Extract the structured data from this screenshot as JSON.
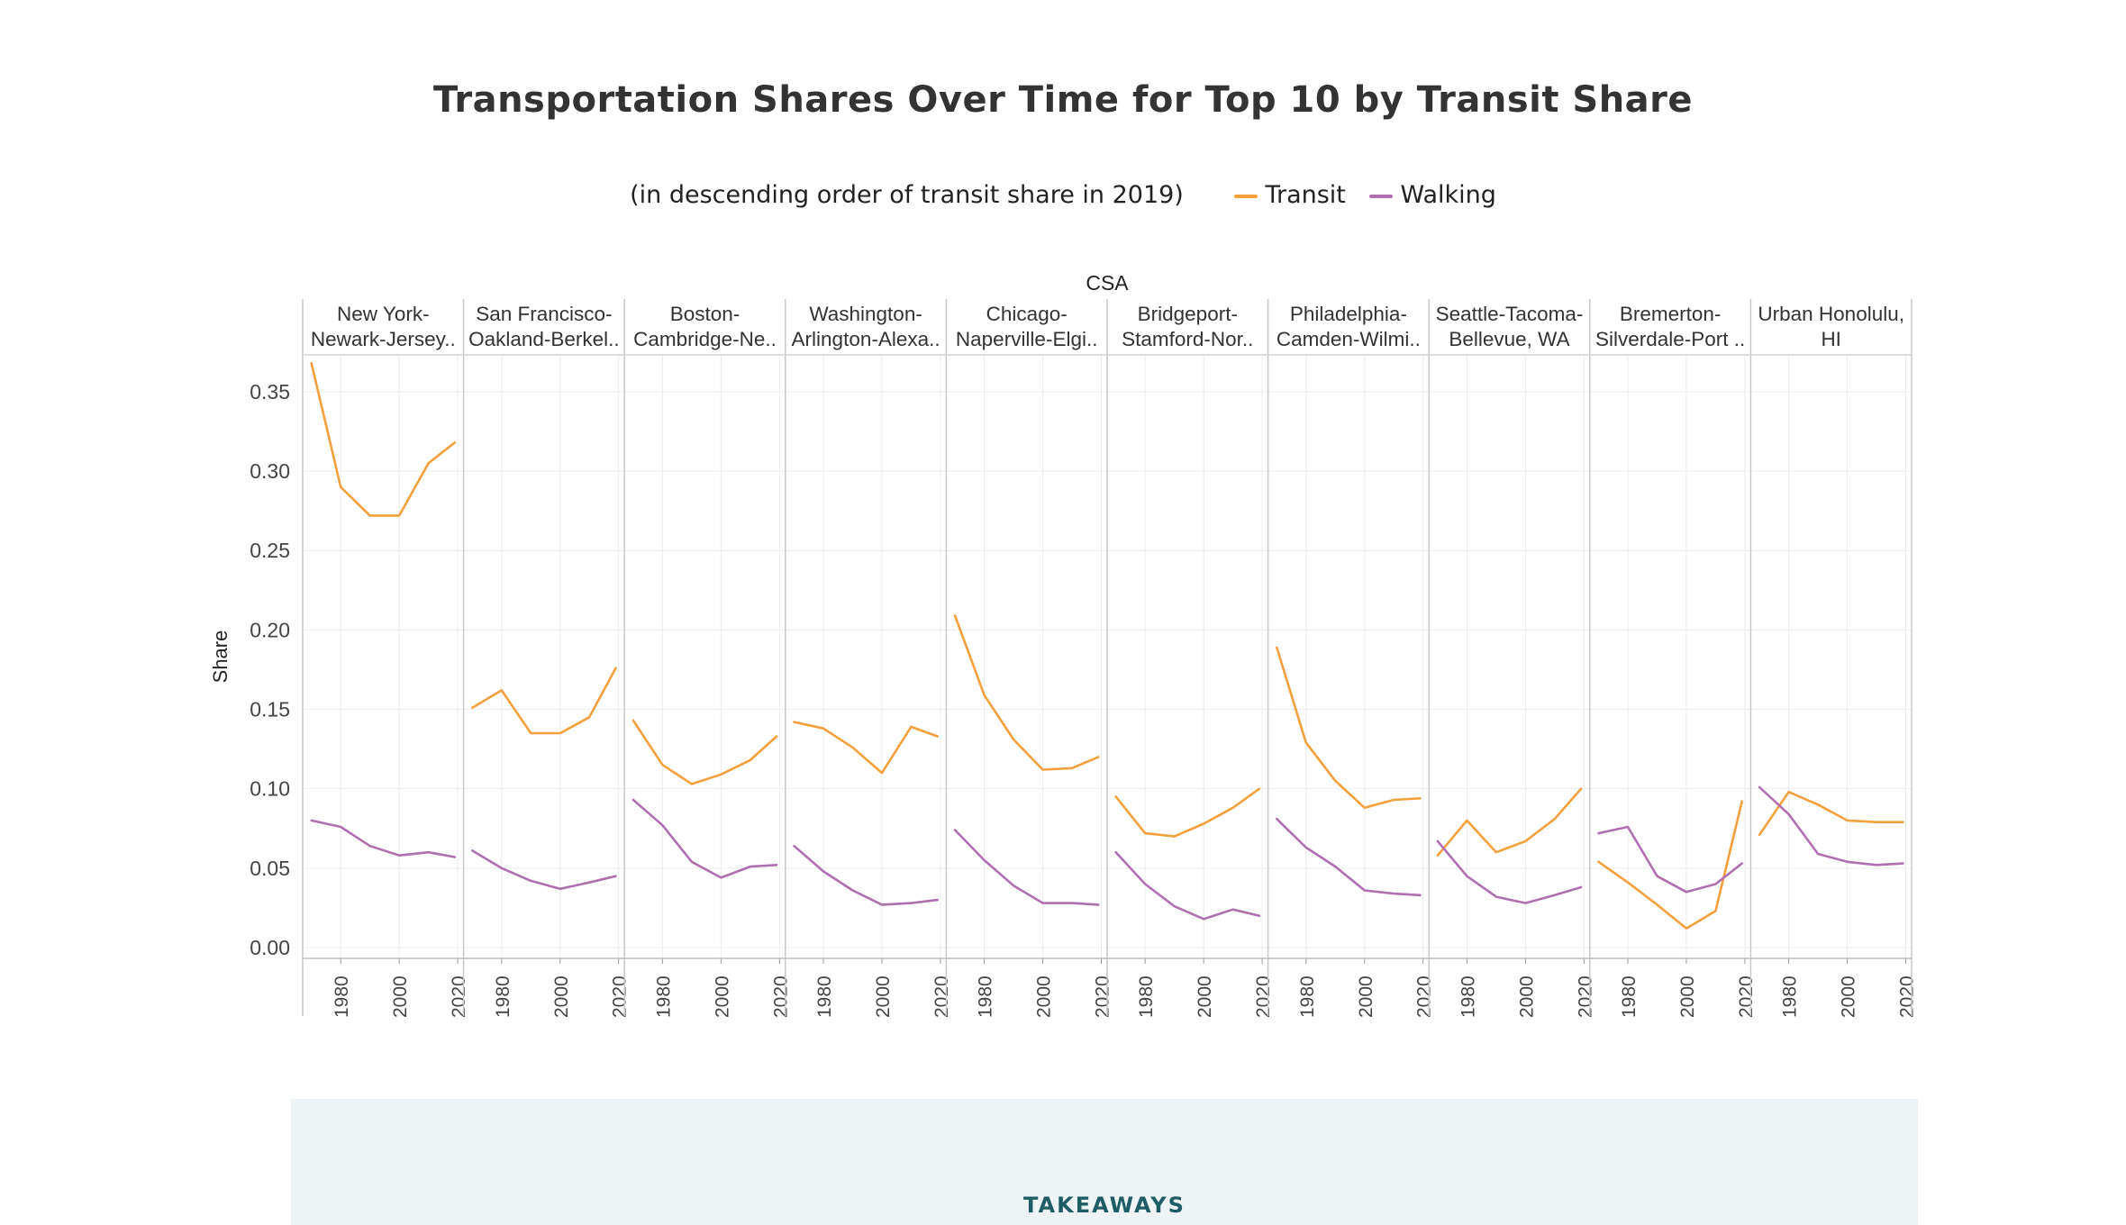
{
  "page": {
    "title": "Transportation Shares Over Time for Top 10 by Transit Share",
    "subtitle": "(in descending order of transit share in 2019)",
    "legend": [
      {
        "label": "Transit",
        "color": "#f5a03c"
      },
      {
        "label": "Walking",
        "color": "#b06fb0"
      }
    ],
    "takeaways": "TAKEAWAYS"
  },
  "chart_data": {
    "type": "line",
    "facet_label": "CSA",
    "ylabel": "Share",
    "ylim": [
      0,
      0.38
    ],
    "yticks": [
      "0.00",
      "0.05",
      "0.10",
      "0.15",
      "0.20",
      "0.25",
      "0.30",
      "0.35"
    ],
    "xlim": [
      1967,
      2022
    ],
    "xticks": [
      "1980",
      "2000",
      "2020"
    ],
    "grid": true,
    "colors": {
      "Transit": "#f5a03c",
      "Walking": "#b06fb0"
    },
    "x": [
      1970,
      1980,
      1990,
      2000,
      2010,
      2019
    ],
    "panels": [
      {
        "label": [
          "New York-",
          "Newark-Jersey.."
        ],
        "series": [
          {
            "name": "Transit",
            "values": [
              0.368,
              0.29,
              0.272,
              0.272,
              0.305,
              0.318
            ]
          },
          {
            "name": "Walking",
            "values": [
              0.08,
              0.076,
              0.064,
              0.058,
              0.06,
              0.057
            ]
          }
        ]
      },
      {
        "label": [
          "San Francisco-",
          "Oakland-Berkel.."
        ],
        "series": [
          {
            "name": "Transit",
            "values": [
              0.151,
              0.162,
              0.135,
              0.135,
              0.145,
              0.176
            ]
          },
          {
            "name": "Walking",
            "values": [
              0.061,
              0.05,
              0.042,
              0.037,
              0.041,
              0.045
            ]
          }
        ]
      },
      {
        "label": [
          "Boston-",
          "Cambridge-Ne.."
        ],
        "series": [
          {
            "name": "Transit",
            "values": [
              0.143,
              0.115,
              0.103,
              0.109,
              0.118,
              0.133
            ]
          },
          {
            "name": "Walking",
            "values": [
              0.093,
              0.077,
              0.054,
              0.044,
              0.051,
              0.052
            ]
          }
        ]
      },
      {
        "label": [
          "Washington-",
          "Arlington-Alexa.."
        ],
        "series": [
          {
            "name": "Transit",
            "values": [
              0.142,
              0.138,
              0.126,
              0.11,
              0.139,
              0.133
            ]
          },
          {
            "name": "Walking",
            "values": [
              0.064,
              0.048,
              0.036,
              0.027,
              0.028,
              0.03
            ]
          }
        ]
      },
      {
        "label": [
          "Chicago-",
          "Naperville-Elgi.."
        ],
        "series": [
          {
            "name": "Transit",
            "values": [
              0.209,
              0.159,
              0.131,
              0.112,
              0.113,
              0.12
            ]
          },
          {
            "name": "Walking",
            "values": [
              0.074,
              0.055,
              0.039,
              0.028,
              0.028,
              0.027
            ]
          }
        ]
      },
      {
        "label": [
          "Bridgeport-",
          "Stamford-Nor.."
        ],
        "series": [
          {
            "name": "Transit",
            "values": [
              0.095,
              0.072,
              0.07,
              0.078,
              0.088,
              0.1
            ]
          },
          {
            "name": "Walking",
            "values": [
              0.06,
              0.04,
              0.026,
              0.018,
              0.024,
              0.02
            ]
          }
        ]
      },
      {
        "label": [
          "Philadelphia-",
          "Camden-Wilmi.."
        ],
        "series": [
          {
            "name": "Transit",
            "values": [
              0.189,
              0.129,
              0.105,
              0.088,
              0.093,
              0.094
            ]
          },
          {
            "name": "Walking",
            "values": [
              0.081,
              0.063,
              0.051,
              0.036,
              0.034,
              0.033
            ]
          }
        ]
      },
      {
        "label": [
          "Seattle-Tacoma-",
          "Bellevue, WA"
        ],
        "series": [
          {
            "name": "Transit",
            "values": [
              0.058,
              0.08,
              0.06,
              0.067,
              0.081,
              0.1
            ]
          },
          {
            "name": "Walking",
            "values": [
              0.067,
              0.045,
              0.032,
              0.028,
              0.033,
              0.038
            ]
          }
        ]
      },
      {
        "label": [
          "Bremerton-",
          "Silverdale-Port .."
        ],
        "series": [
          {
            "name": "Transit",
            "values": [
              0.054,
              0.041,
              0.027,
              0.012,
              0.023,
              0.092
            ]
          },
          {
            "name": "Walking",
            "values": [
              0.072,
              0.076,
              0.045,
              0.035,
              0.04,
              0.053
            ]
          }
        ]
      },
      {
        "label": [
          "Urban Honolulu,",
          "HI"
        ],
        "series": [
          {
            "name": "Transit",
            "values": [
              0.071,
              0.098,
              0.09,
              0.08,
              0.079,
              0.079
            ]
          },
          {
            "name": "Walking",
            "values": [
              0.101,
              0.084,
              0.059,
              0.054,
              0.052,
              0.053
            ]
          }
        ]
      }
    ]
  }
}
